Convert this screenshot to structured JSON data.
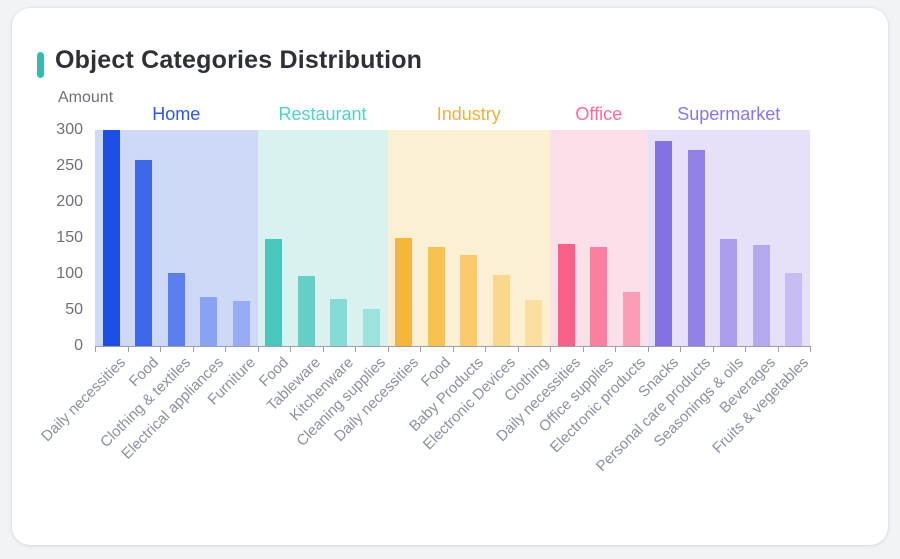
{
  "page": {
    "title": "Object Categories Distribution",
    "accent_color": "#2FBDB3"
  },
  "chart_data": {
    "type": "bar",
    "title": "Object Categories Distribution",
    "xlabel": "",
    "ylabel": "Amount",
    "ylim": [
      0,
      300
    ],
    "yticks": [
      0,
      50,
      100,
      150,
      200,
      250,
      300
    ],
    "grid": false,
    "legend_position": "none",
    "x_label_rotation_deg": 45,
    "groups": [
      {
        "name": "Home",
        "label_color": "#2F55E9",
        "band_color": "#CDD9F6",
        "categories": [
          "Daily necessities",
          "Food",
          "Clothing & textiles",
          "Electrical appliances",
          "Furniture"
        ],
        "values": [
          300,
          258,
          102,
          68,
          63
        ],
        "bar_colors": [
          "#1F4EE3",
          "#3C69E9",
          "#5B7FEC",
          "#8AA2F2",
          "#97ACF4"
        ]
      },
      {
        "name": "Restaurant",
        "label_color": "#50D1C6",
        "band_color": "#D9F2F0",
        "categories": [
          "Food",
          "Tableware",
          "Kitchenware",
          "Cleaning supplies"
        ],
        "values": [
          149,
          97,
          65,
          51
        ],
        "bar_colors": [
          "#47C7BD",
          "#63D0C8",
          "#85DBD5",
          "#9DE3DD"
        ]
      },
      {
        "name": "Industry",
        "label_color": "#EDB23C",
        "band_color": "#FCF0D2",
        "categories": [
          "Daily necessities",
          "Food",
          "Baby Products",
          "Electronic Devices",
          "Clothing"
        ],
        "values": [
          150,
          138,
          126,
          99,
          64
        ],
        "bar_colors": [
          "#F6B637",
          "#F8C154",
          "#F9CA6B",
          "#FAD78D",
          "#FBDFA1"
        ]
      },
      {
        "name": "Office",
        "label_color": "#FB6E9B",
        "band_color": "#FCDFE9",
        "categories": [
          "Daily necessities",
          "Office supplies",
          "Electronic products"
        ],
        "values": [
          142,
          138,
          75
        ],
        "bar_colors": [
          "#FA6189",
          "#FB7F9E",
          "#FC9CB5"
        ]
      },
      {
        "name": "Supermarket",
        "label_color": "#8A76EC",
        "band_color": "#E6E1F8",
        "categories": [
          "Snacks",
          "Personal care products",
          "Seasonings & oils",
          "Beverages",
          "Fruits & vegetables"
        ],
        "values": [
          285,
          272,
          148,
          140,
          101
        ],
        "bar_colors": [
          "#8471E2",
          "#9282E5",
          "#AB9DEB",
          "#B5A9ED",
          "#C8BDF2"
        ]
      }
    ]
  }
}
